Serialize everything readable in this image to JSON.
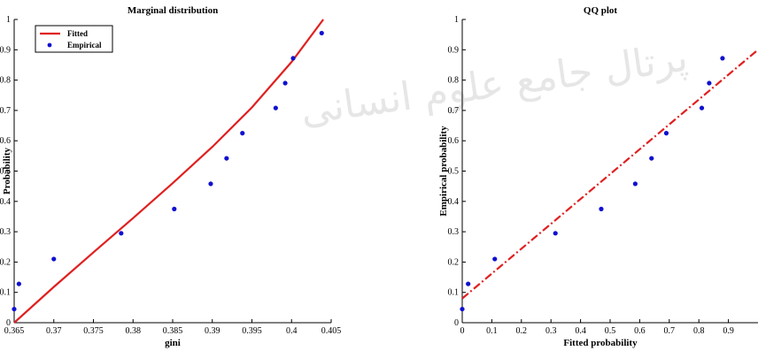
{
  "colors": {
    "fitted": "#e02020",
    "empirical": "#1010d0",
    "axis": "#000000"
  },
  "watermark": "پرتال جامع علوم انسانی",
  "chart_data": [
    {
      "type": "line",
      "title": "Marginal distribution",
      "xlabel": "gini",
      "ylabel": "Probability",
      "xlim": [
        0.365,
        0.405
      ],
      "ylim": [
        0,
        1
      ],
      "xticks": [
        "0.365",
        "0.37",
        "0.375",
        "0.38",
        "0.385",
        "0.39",
        "0.395",
        "0.4",
        "0.405"
      ],
      "yticks": [
        "0",
        "0.1",
        "0.2",
        "0.3",
        "0.4",
        "0.5",
        "0.6",
        "0.7",
        "0.8",
        "0.9",
        "1"
      ],
      "legend": {
        "position": "top-left",
        "entries": [
          "Fitted",
          "Empirical"
        ]
      },
      "series": [
        {
          "name": "Fitted",
          "kind": "line",
          "x": [
            0.365,
            0.37,
            0.375,
            0.38,
            0.385,
            0.39,
            0.395,
            0.4,
            0.404
          ],
          "y": [
            0.0,
            0.118,
            0.232,
            0.345,
            0.46,
            0.58,
            0.71,
            0.86,
            1.0
          ]
        },
        {
          "name": "Empirical",
          "kind": "scatter",
          "x": [
            0.365,
            0.3656,
            0.37,
            0.3785,
            0.3852,
            0.3898,
            0.3918,
            0.3938,
            0.398,
            0.3992,
            0.4002,
            0.4038
          ],
          "y": [
            0.045,
            0.128,
            0.21,
            0.295,
            0.375,
            0.458,
            0.542,
            0.625,
            0.708,
            0.79,
            0.872,
            0.955
          ]
        }
      ]
    },
    {
      "type": "scatter",
      "title": "QQ plot",
      "xlabel": "Fitted probability",
      "ylabel": "Empirical probability",
      "xlim": [
        0,
        1
      ],
      "ylim": [
        0,
        1
      ],
      "xticks": [
        "0",
        "0.1",
        "0.2",
        "0.3",
        "0.4",
        "0.5",
        "0.6",
        "0.7",
        "0.8",
        "0.9"
      ],
      "yticks": [
        "0",
        "0.1",
        "0.2",
        "0.3",
        "0.4",
        "0.5",
        "0.6",
        "0.7",
        "0.8",
        "0.9",
        "1"
      ],
      "series": [
        {
          "kind": "line",
          "style": "dash-dot",
          "x": [
            0,
            1
          ],
          "y": [
            0.08,
            0.9
          ]
        },
        {
          "kind": "scatter",
          "x": [
            0.0,
            0.02,
            0.11,
            0.315,
            0.47,
            0.585,
            0.64,
            0.69,
            0.81,
            0.835,
            0.88
          ],
          "y": [
            0.045,
            0.128,
            0.21,
            0.295,
            0.375,
            0.458,
            0.542,
            0.625,
            0.708,
            0.79,
            0.872
          ]
        }
      ]
    }
  ]
}
